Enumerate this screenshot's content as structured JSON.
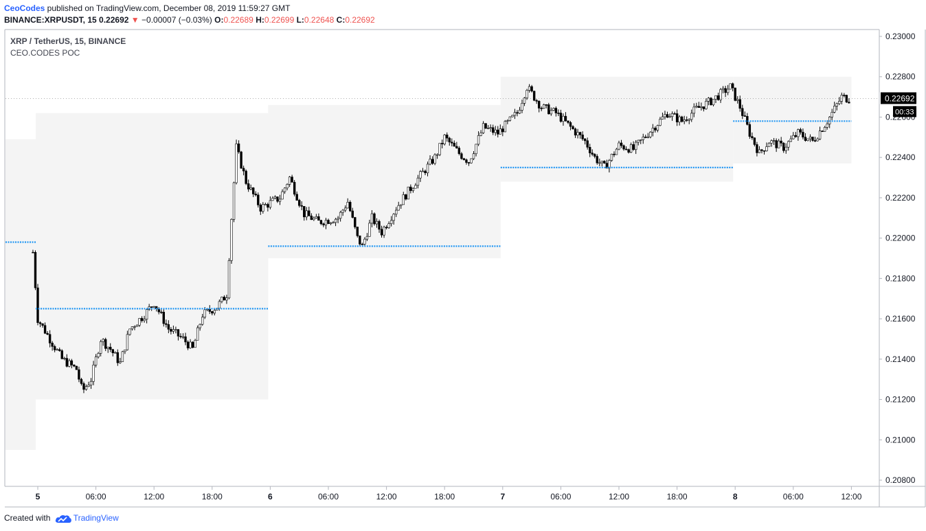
{
  "header": {
    "publisher": "CeoCodes",
    "published_text": " published on TradingView.com, December 08, 2019 11:59:27 GMT",
    "symbol": "BINANCE:XRPUSDT, 15",
    "last": "0.22692",
    "change_arrow": "▼",
    "change": "−0.00007 (−0.03%)",
    "o_label": "O:",
    "o_value": "0.22689",
    "h_label": "H:",
    "h_value": "0.22699",
    "l_label": "L:",
    "l_value": "0.22648",
    "c_label": "C:",
    "c_value": "0.22692"
  },
  "legend": {
    "series_title": "XRP / TetherUS, 15, BINANCE",
    "indicator": "CEO.CODES POC"
  },
  "footer": {
    "created_with": "Created with",
    "brand": "TradingView",
    "logo_icon": "tradingview-cloud-icon"
  },
  "colors": {
    "candle_up": "#ffffff",
    "candle_down": "#000000",
    "candle_border": "#000000",
    "poc_line": "#2196f3",
    "value_area": "#f4f4f4",
    "axis": "#b2b5be",
    "last_price_bg": "#000000"
  },
  "chart_data": {
    "type": "candlestick",
    "interval": "15",
    "last_price_label": "0.22692",
    "countdown_label": "00:33",
    "ylim": [
      0.208,
      0.23
    ],
    "y_ticks": [
      "0.23000",
      "0.22800",
      "0.22600",
      "0.22400",
      "0.22200",
      "0.22000",
      "0.21800",
      "0.21600",
      "0.21400",
      "0.21200",
      "0.21000",
      "0.20800"
    ],
    "x_ticks": [
      {
        "label": "5",
        "bold": true,
        "day": 5,
        "hour": 0
      },
      {
        "label": "06:00",
        "bold": false,
        "day": 5,
        "hour": 6
      },
      {
        "label": "12:00",
        "bold": false,
        "day": 5,
        "hour": 12
      },
      {
        "label": "18:00",
        "bold": false,
        "day": 5,
        "hour": 18
      },
      {
        "label": "6",
        "bold": true,
        "day": 6,
        "hour": 0
      },
      {
        "label": "06:00",
        "bold": false,
        "day": 6,
        "hour": 6
      },
      {
        "label": "12:00",
        "bold": false,
        "day": 6,
        "hour": 12
      },
      {
        "label": "18:00",
        "bold": false,
        "day": 6,
        "hour": 18
      },
      {
        "label": "7",
        "bold": true,
        "day": 7,
        "hour": 0
      },
      {
        "label": "06:00",
        "bold": false,
        "day": 7,
        "hour": 6
      },
      {
        "label": "12:00",
        "bold": false,
        "day": 7,
        "hour": 12
      },
      {
        "label": "18:00",
        "bold": false,
        "day": 7,
        "hour": 18
      },
      {
        "label": "8",
        "bold": true,
        "day": 8,
        "hour": 0
      },
      {
        "label": "06:00",
        "bold": false,
        "day": 8,
        "hour": 6
      },
      {
        "label": "12:00",
        "bold": false,
        "day": 8,
        "hour": 12
      }
    ],
    "sessions": [
      {
        "date": "2019-12-04",
        "va_high": 0.2249,
        "va_low": 0.2095,
        "poc": 0.2198
      },
      {
        "date": "2019-12-05",
        "va_high": 0.2262,
        "va_low": 0.212,
        "poc": 0.2165
      },
      {
        "date": "2019-12-06",
        "va_high": 0.2266,
        "va_low": 0.219,
        "poc": 0.2196
      },
      {
        "date": "2019-12-07",
        "va_high": 0.228,
        "va_low": 0.2228,
        "poc": 0.2235
      },
      {
        "date": "2019-12-08",
        "va_high": 0.228,
        "va_low": 0.2237,
        "poc": 0.2258
      }
    ],
    "price_path": [
      {
        "day": 4,
        "hour": 23.5,
        "price": 0.2193
      },
      {
        "day": 5,
        "hour": 0,
        "price": 0.216
      },
      {
        "day": 5,
        "hour": 1,
        "price": 0.2152
      },
      {
        "day": 5,
        "hour": 2.5,
        "price": 0.214
      },
      {
        "day": 5,
        "hour": 4,
        "price": 0.2135
      },
      {
        "day": 5,
        "hour": 4.6,
        "price": 0.2124
      },
      {
        "day": 5,
        "hour": 5.5,
        "price": 0.213
      },
      {
        "day": 5,
        "hour": 6.5,
        "price": 0.215
      },
      {
        "day": 5,
        "hour": 7.5,
        "price": 0.2145
      },
      {
        "day": 5,
        "hour": 8.5,
        "price": 0.2138
      },
      {
        "day": 5,
        "hour": 9.5,
        "price": 0.2155
      },
      {
        "day": 5,
        "hour": 11,
        "price": 0.2162
      },
      {
        "day": 5,
        "hour": 12,
        "price": 0.2168
      },
      {
        "day": 5,
        "hour": 13.5,
        "price": 0.2155
      },
      {
        "day": 5,
        "hour": 15,
        "price": 0.215
      },
      {
        "day": 5,
        "hour": 16,
        "price": 0.2145
      },
      {
        "day": 5,
        "hour": 17,
        "price": 0.2162
      },
      {
        "day": 5,
        "hour": 18.5,
        "price": 0.2166
      },
      {
        "day": 5,
        "hour": 19.5,
        "price": 0.2172
      },
      {
        "day": 5,
        "hour": 20,
        "price": 0.221
      },
      {
        "day": 5,
        "hour": 20.5,
        "price": 0.2245
      },
      {
        "day": 5,
        "hour": 21.5,
        "price": 0.2228
      },
      {
        "day": 5,
        "hour": 23,
        "price": 0.2215
      },
      {
        "day": 6,
        "hour": 1,
        "price": 0.222
      },
      {
        "day": 6,
        "hour": 2,
        "price": 0.223
      },
      {
        "day": 6,
        "hour": 3.5,
        "price": 0.2212
      },
      {
        "day": 6,
        "hour": 5,
        "price": 0.2208
      },
      {
        "day": 6,
        "hour": 7,
        "price": 0.221
      },
      {
        "day": 6,
        "hour": 8,
        "price": 0.2218
      },
      {
        "day": 6,
        "hour": 9,
        "price": 0.22
      },
      {
        "day": 6,
        "hour": 9.5,
        "price": 0.2196
      },
      {
        "day": 6,
        "hour": 10.5,
        "price": 0.221
      },
      {
        "day": 6,
        "hour": 11.5,
        "price": 0.2203
      },
      {
        "day": 6,
        "hour": 13,
        "price": 0.2215
      },
      {
        "day": 6,
        "hour": 15,
        "price": 0.2228
      },
      {
        "day": 6,
        "hour": 17,
        "price": 0.224
      },
      {
        "day": 6,
        "hour": 18,
        "price": 0.225
      },
      {
        "day": 6,
        "hour": 19.5,
        "price": 0.2242
      },
      {
        "day": 6,
        "hour": 20.5,
        "price": 0.2238
      },
      {
        "day": 6,
        "hour": 22,
        "price": 0.2255
      },
      {
        "day": 6,
        "hour": 23.5,
        "price": 0.2252
      },
      {
        "day": 7,
        "hour": 1.5,
        "price": 0.2262
      },
      {
        "day": 7,
        "hour": 2.5,
        "price": 0.2275
      },
      {
        "day": 7,
        "hour": 4,
        "price": 0.2265
      },
      {
        "day": 7,
        "hour": 5.5,
        "price": 0.2262
      },
      {
        "day": 7,
        "hour": 7,
        "price": 0.2255
      },
      {
        "day": 7,
        "hour": 8.5,
        "price": 0.2248
      },
      {
        "day": 7,
        "hour": 9.5,
        "price": 0.224
      },
      {
        "day": 7,
        "hour": 10.5,
        "price": 0.2235
      },
      {
        "day": 7,
        "hour": 12,
        "price": 0.2246
      },
      {
        "day": 7,
        "hour": 13.5,
        "price": 0.2244
      },
      {
        "day": 7,
        "hour": 15,
        "price": 0.2252
      },
      {
        "day": 7,
        "hour": 17,
        "price": 0.2262
      },
      {
        "day": 7,
        "hour": 18.5,
        "price": 0.2258
      },
      {
        "day": 7,
        "hour": 20,
        "price": 0.2264
      },
      {
        "day": 7,
        "hour": 21.5,
        "price": 0.2268
      },
      {
        "day": 7,
        "hour": 23.5,
        "price": 0.2275
      },
      {
        "day": 8,
        "hour": 0.5,
        "price": 0.2265
      },
      {
        "day": 8,
        "hour": 1.5,
        "price": 0.2252
      },
      {
        "day": 8,
        "hour": 2.5,
        "price": 0.2242
      },
      {
        "day": 8,
        "hour": 3.5,
        "price": 0.2248
      },
      {
        "day": 8,
        "hour": 5,
        "price": 0.2245
      },
      {
        "day": 8,
        "hour": 6.5,
        "price": 0.2252
      },
      {
        "day": 8,
        "hour": 8,
        "price": 0.2248
      },
      {
        "day": 8,
        "hour": 9.5,
        "price": 0.2258
      },
      {
        "day": 8,
        "hour": 11,
        "price": 0.227
      },
      {
        "day": 8,
        "hour": 11.75,
        "price": 0.2269
      }
    ]
  }
}
